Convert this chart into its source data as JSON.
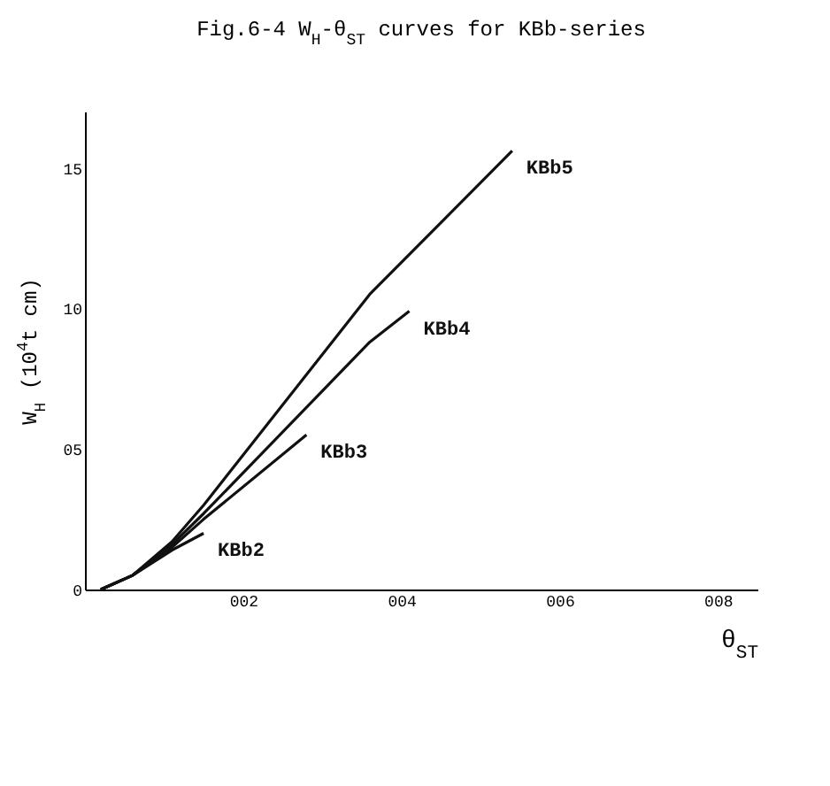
{
  "chart_data": {
    "type": "line",
    "title": "Fig.6-4  W$_{H}$-θ$_{ST}$ curves for KBb-series",
    "xlabel": "θ$_{ST}$",
    "ylabel": "W$_{H}$ (10$^{4}$t cm)",
    "xlim": [
      0,
      8.5
    ],
    "ylim": [
      0,
      17
    ],
    "xticks": [
      {
        "value": 2,
        "label": "002"
      },
      {
        "value": 4,
        "label": "004"
      },
      {
        "value": 6,
        "label": "006"
      },
      {
        "value": 8,
        "label": "008"
      }
    ],
    "yticks": [
      0,
      {
        "value": 5,
        "label": "05"
      },
      10,
      15
    ],
    "grid": false,
    "legend": false,
    "line_style": "solid",
    "marker": "none",
    "series": [
      {
        "name": "KBb5",
        "color": "#111111",
        "x": [
          0.2,
          0.6,
          1.1,
          1.5,
          3.6,
          5.4
        ],
        "values": [
          0,
          0.5,
          1.7,
          3.0,
          10.5,
          15.6
        ]
      },
      {
        "name": "KBb4",
        "color": "#111111",
        "x": [
          0.2,
          0.6,
          1.1,
          1.5,
          3.6,
          4.1
        ],
        "values": [
          0,
          0.5,
          1.6,
          2.7,
          8.8,
          9.9
        ]
      },
      {
        "name": "KBb3",
        "color": "#111111",
        "x": [
          0.2,
          0.6,
          1.1,
          1.5,
          2.8
        ],
        "values": [
          0,
          0.5,
          1.5,
          2.5,
          5.5
        ]
      },
      {
        "name": "KBb2",
        "color": "#111111",
        "x": [
          0.2,
          0.6,
          1.1,
          1.5
        ],
        "values": [
          0,
          0.5,
          1.4,
          2.0
        ]
      }
    ]
  }
}
